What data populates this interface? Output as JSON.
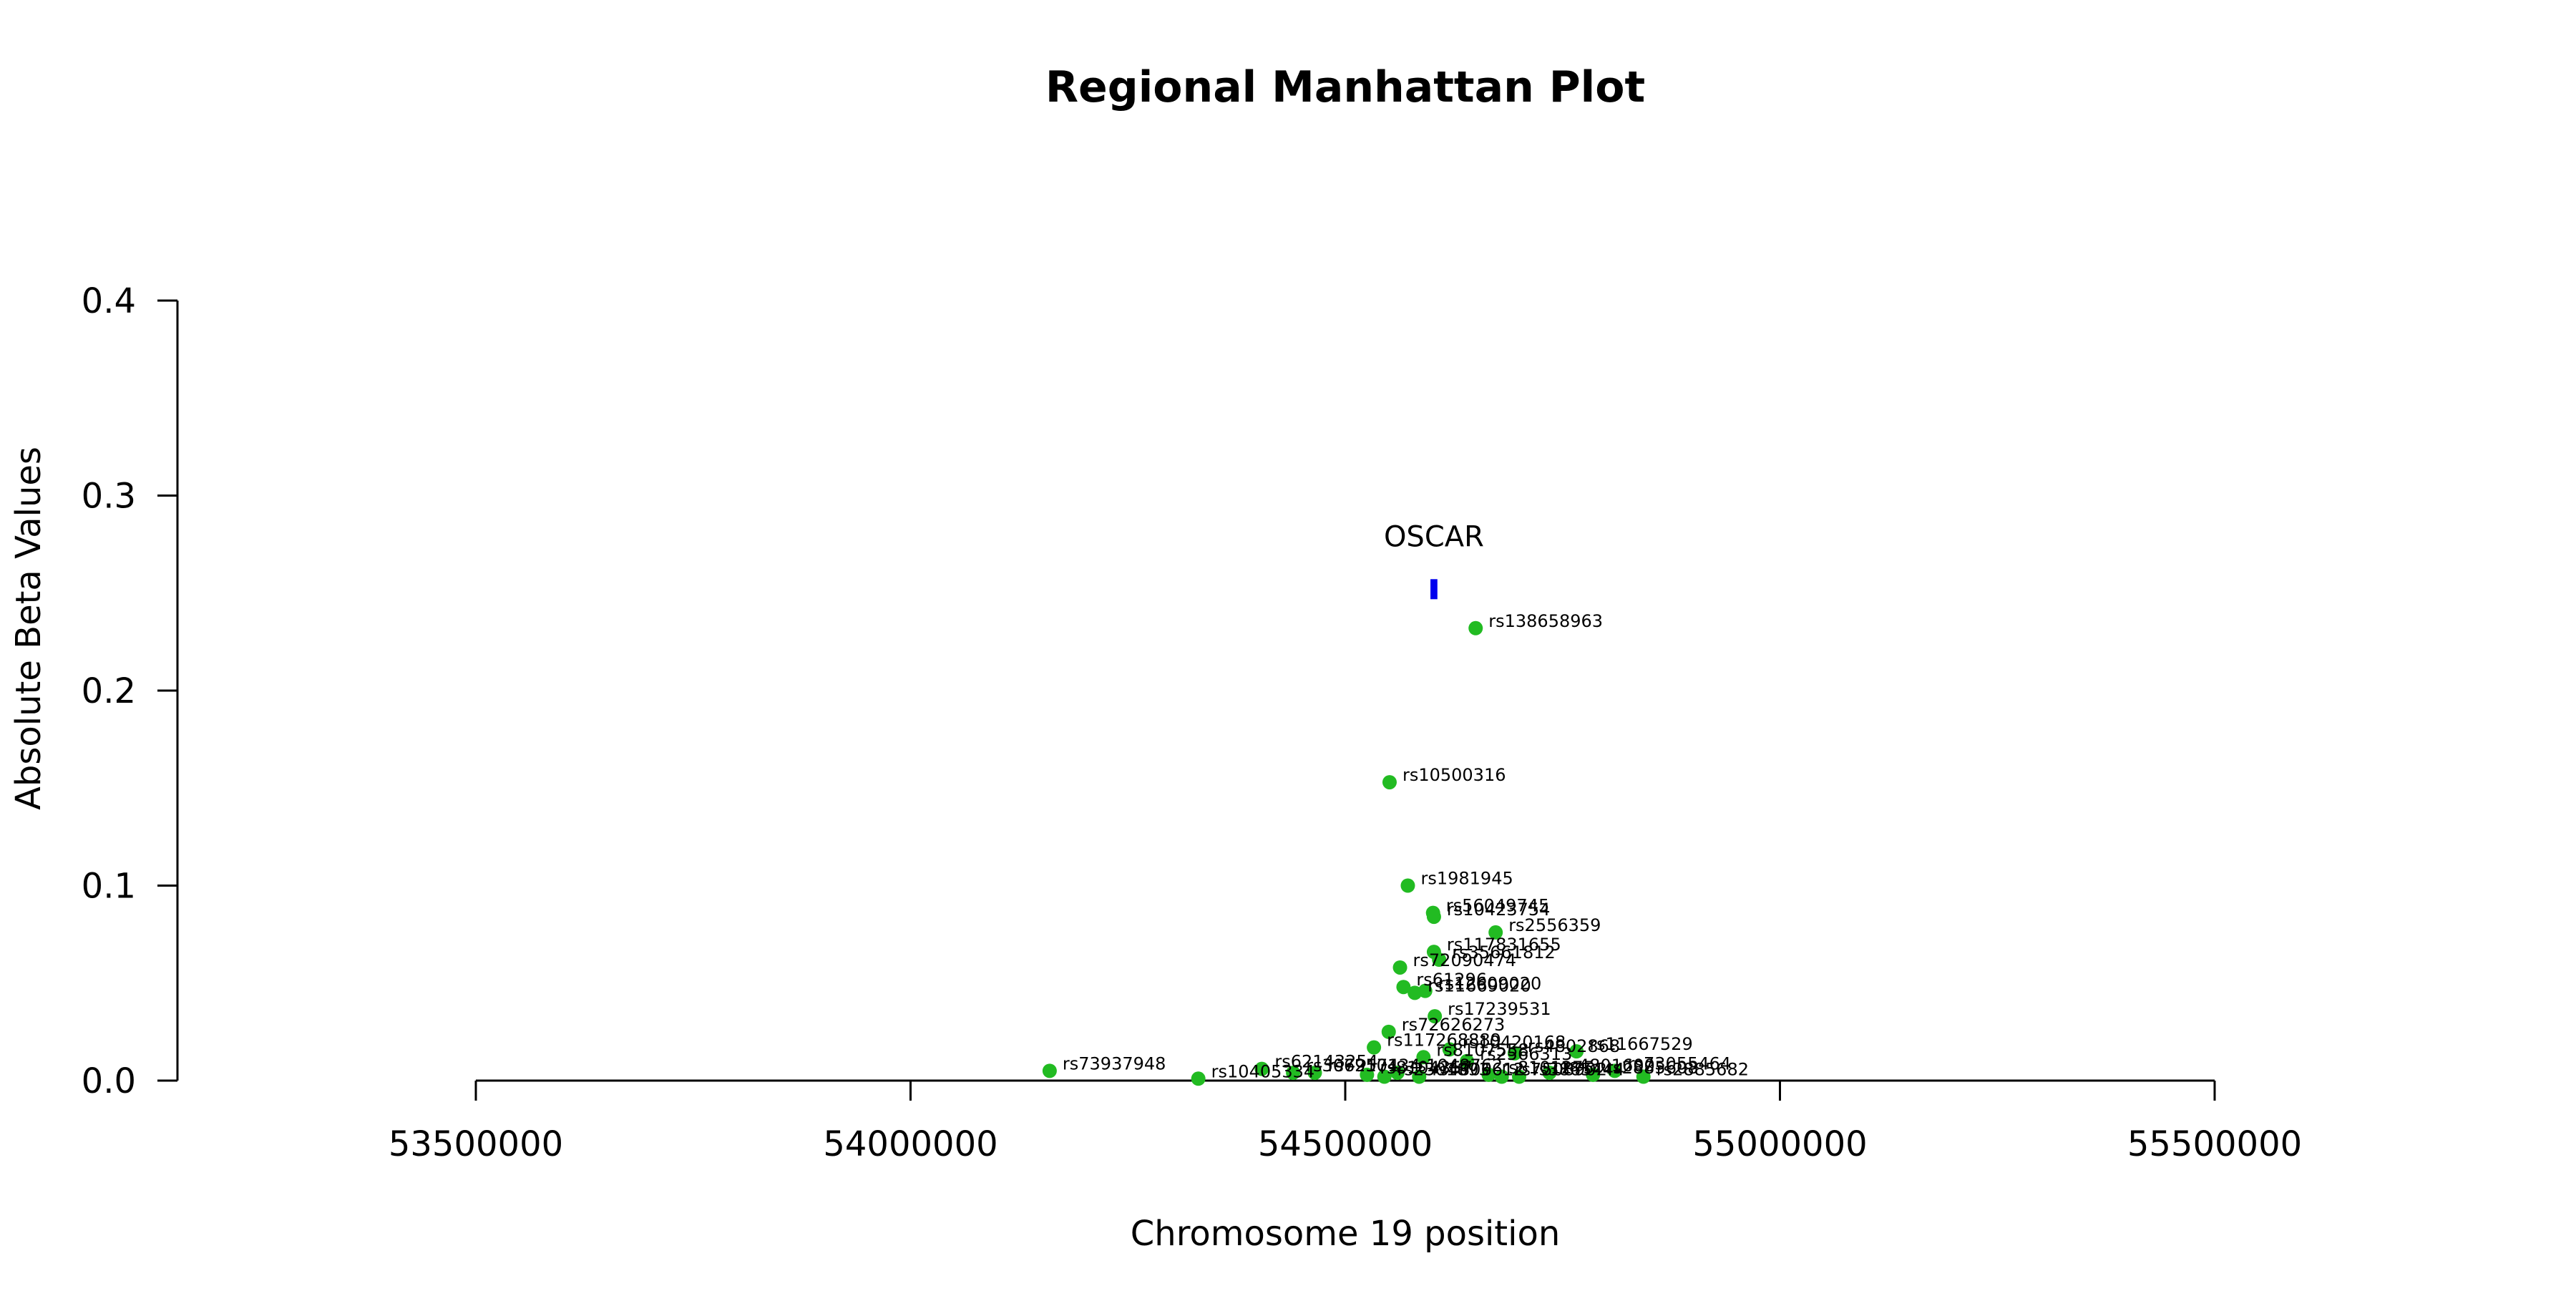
{
  "chart_data": {
    "type": "scatter",
    "title": "Regional Manhattan Plot",
    "xlabel": "Chromosome 19 position",
    "ylabel": "Absolute Beta Values",
    "xlim": [
      53500000,
      55500000
    ],
    "ylim": [
      0,
      0.4
    ],
    "x_ticks": [
      53500000,
      54000000,
      54500000,
      55000000,
      55500000
    ],
    "x_tick_labels": [
      "53500000",
      "54000000",
      "54500000",
      "55000000",
      "55500000"
    ],
    "y_ticks": [
      0,
      0.1,
      0.2,
      0.3,
      0.4
    ],
    "y_tick_labels": [
      "0.0",
      "0.1",
      "0.2",
      "0.3",
      "0.4"
    ],
    "grid": false,
    "point_color": "#22bb22",
    "gene": {
      "name": "OSCAR",
      "start": 54598000,
      "end": 54606000,
      "y": 0.252,
      "color": "#0000ee"
    },
    "points": [
      {
        "label": "rs138658963",
        "x": 54650000,
        "y": 0.232
      },
      {
        "label": "rs10500316",
        "x": 54551000,
        "y": 0.153
      },
      {
        "label": "rs1981945",
        "x": 54572000,
        "y": 0.1
      },
      {
        "label": "rs56049745",
        "x": 54601000,
        "y": 0.086
      },
      {
        "label": "rs10423754",
        "x": 54602000,
        "y": 0.084
      },
      {
        "label": "rs2556359",
        "x": 54673000,
        "y": 0.076
      },
      {
        "label": "rs117831655",
        "x": 54602000,
        "y": 0.066
      },
      {
        "label": "rs35661812",
        "x": 54608000,
        "y": 0.062
      },
      {
        "label": "rs72090474",
        "x": 54563000,
        "y": 0.058
      },
      {
        "label": "rs61296",
        "x": 54567000,
        "y": 0.048
      },
      {
        "label": "rs12609020",
        "x": 54592000,
        "y": 0.046
      },
      {
        "label": "rs11669020",
        "x": 54580000,
        "y": 0.045
      },
      {
        "label": "rs17239531",
        "x": 54603000,
        "y": 0.033
      },
      {
        "label": "rs72626273",
        "x": 54550000,
        "y": 0.025
      },
      {
        "label": "rs117268889",
        "x": 54533000,
        "y": 0.017
      },
      {
        "label": "rs11667529",
        "x": 54766000,
        "y": 0.015
      },
      {
        "label": "rs4802868",
        "x": 54695000,
        "y": 0.014
      },
      {
        "label": "rs10420168",
        "x": 54620000,
        "y": 0.016
      },
      {
        "label": "rs8107558",
        "x": 54590000,
        "y": 0.012
      },
      {
        "label": "rs2566313",
        "x": 54640000,
        "y": 0.01
      },
      {
        "label": "rs73937948",
        "x": 54160000,
        "y": 0.005
      },
      {
        "label": "rs10405334",
        "x": 54331000,
        "y": 0.001
      },
      {
        "label": "rs62143254",
        "x": 54404000,
        "y": 0.006
      },
      {
        "label": "rs3069174",
        "x": 54440000,
        "y": 0.004
      },
      {
        "label": "rs7250134",
        "x": 54465000,
        "y": 0.004
      },
      {
        "label": "rs8104357",
        "x": 54525000,
        "y": 0.003
      },
      {
        "label": "rs2301893",
        "x": 54545000,
        "y": 0.002
      },
      {
        "label": "rs1048762",
        "x": 54560000,
        "y": 0.004
      },
      {
        "label": "rs4806612",
        "x": 54585000,
        "y": 0.002
      },
      {
        "label": "rs8101275",
        "x": 54665000,
        "y": 0.003
      },
      {
        "label": "rs7508902",
        "x": 54680000,
        "y": 0.002
      },
      {
        "label": "rs3865444",
        "x": 54700000,
        "y": 0.002
      },
      {
        "label": "rs4801600",
        "x": 54735000,
        "y": 0.004
      },
      {
        "label": "rs2885608",
        "x": 54785000,
        "y": 0.003
      },
      {
        "label": "rs73055464",
        "x": 54810000,
        "y": 0.005
      },
      {
        "label": "rs2885682",
        "x": 54843000,
        "y": 0.002
      }
    ]
  }
}
